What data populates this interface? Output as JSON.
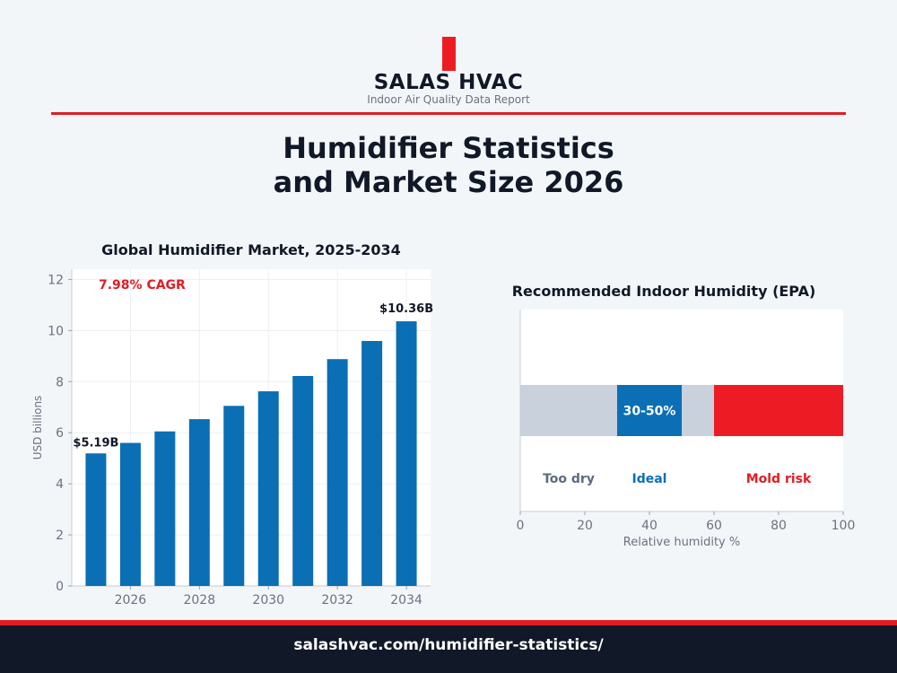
{
  "brand": {
    "name": "SALAS HVAC",
    "tagline": "Indoor Air Quality Data Report",
    "accent": "#ed1c24",
    "logo": "red-bar-mark"
  },
  "title": {
    "line1": "Humidifier Statistics",
    "line2": "and Market Size 2026"
  },
  "footer": {
    "url": "salashvac.com/humidifier-statistics/"
  },
  "chart_data": [
    {
      "type": "bar",
      "title": "Global Humidifier Market, 2025-2034",
      "xlabel": "",
      "ylabel": "USD billions",
      "x": [
        2025,
        2026,
        2027,
        2028,
        2029,
        2030,
        2031,
        2032,
        2033,
        2034
      ],
      "values": [
        5.19,
        5.6,
        6.05,
        6.53,
        7.05,
        7.62,
        8.22,
        8.88,
        9.59,
        10.36
      ],
      "ylim": [
        0,
        12.4
      ],
      "xlim": [
        2024.3,
        2034.7
      ],
      "yticks": [
        0,
        2,
        4,
        6,
        8,
        10,
        12
      ],
      "xticks": [
        2026,
        2028,
        2030,
        2032,
        2034
      ],
      "grid": true,
      "color": "#0a6fb5",
      "annotations": [
        {
          "text": "7.98% CAGR",
          "color": "#e11d24"
        },
        {
          "text": "$5.19B",
          "year": 2025
        },
        {
          "text": "$10.36B",
          "year": 2034
        }
      ]
    },
    {
      "type": "bar",
      "orientation": "horizontal-segments",
      "title": "Recommended Indoor Humidity (EPA)",
      "xlabel": "Relative humidity %",
      "ylabel": "",
      "xlim": [
        0,
        100
      ],
      "xticks": [
        0,
        20,
        40,
        60,
        80,
        100
      ],
      "segments": [
        {
          "start": 0,
          "end": 30,
          "color": "#c8d1dc",
          "label": "Too dry",
          "label_color": "#5b6b7f"
        },
        {
          "start": 30,
          "end": 50,
          "color": "#0a6fb5",
          "label": "Ideal",
          "label_color": "#0a6fb5",
          "inner_label": "30-50%"
        },
        {
          "start": 50,
          "end": 60,
          "color": "#c8d1dc"
        },
        {
          "start": 60,
          "end": 100,
          "color": "#ed1c24",
          "label": "Mold risk",
          "label_color": "#e11d24"
        }
      ],
      "label_positions": [
        15,
        40,
        80
      ]
    }
  ]
}
